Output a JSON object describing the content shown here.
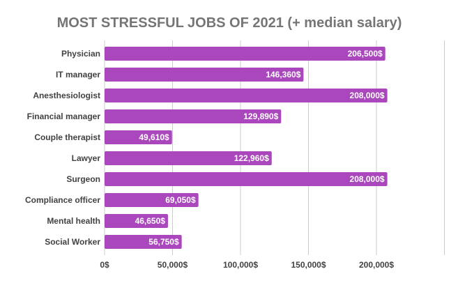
{
  "chart_data": {
    "type": "bar",
    "orientation": "horizontal",
    "title": "MOST STRESSFUL JOBS OF 2021 (+ median salary)",
    "categories": [
      "Physician",
      "IT manager",
      "Anesthesiologist",
      "Financial manager",
      "Couple therapist",
      "Lawyer",
      "Surgeon",
      "Compliance officer",
      "Mental health",
      "Social Worker"
    ],
    "values": [
      206500,
      146360,
      208000,
      129890,
      49610,
      122960,
      208000,
      69050,
      46650,
      56750
    ],
    "value_labels": [
      "206,500$",
      "146,360$",
      "208,000$",
      "129,890$",
      "49,610$",
      "122,960$",
      "208,000$",
      "69,050$",
      "46,650$",
      "56,750$"
    ],
    "x_ticks": [
      0,
      50000,
      100000,
      150000,
      200000
    ],
    "x_tick_labels": [
      "0$",
      "50,000$",
      "100,000$",
      "150,000$",
      "200,000$"
    ],
    "xlim": [
      0,
      250000
    ],
    "grid": true,
    "legend": "none",
    "colors": {
      "bar": "#ab47bc",
      "title": "#757575",
      "grid": "#cccccc",
      "label": "#424242",
      "bar_label": "#ffffff"
    }
  }
}
